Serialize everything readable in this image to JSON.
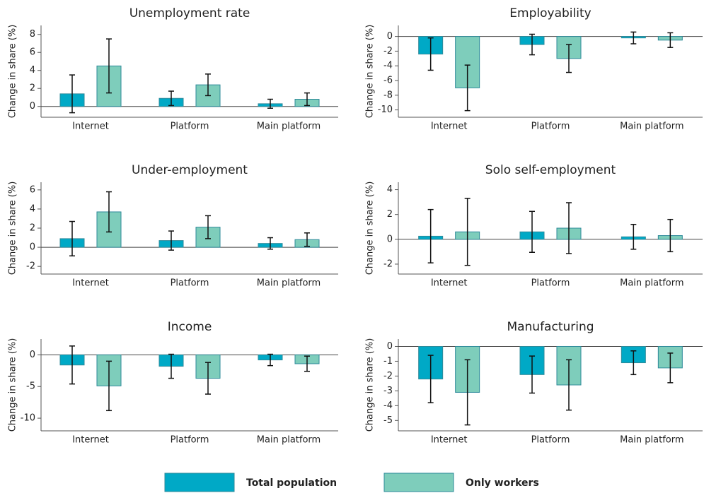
{
  "chart_data": [
    {
      "type": "bar",
      "title": "Unemployment rate",
      "ylabel": "Change in share (%)",
      "categories": [
        "Internet",
        "Platform",
        "Main platform"
      ],
      "series": [
        {
          "name": "Total population",
          "color": "#00a9c6",
          "values": [
            1.4,
            0.9,
            0.3
          ],
          "errors": [
            2.1,
            0.8,
            0.5
          ]
        },
        {
          "name": "Only workers",
          "color": "#7ecdbb",
          "values": [
            4.5,
            2.4,
            0.8
          ],
          "errors": [
            3.0,
            1.2,
            0.7
          ]
        }
      ],
      "ylim": [
        -1.2,
        9
      ],
      "yticks": [
        0,
        2,
        4,
        6,
        8
      ]
    },
    {
      "type": "bar",
      "title": "Employability",
      "ylabel": "Change in share (%)",
      "categories": [
        "Internet",
        "Platform",
        "Main platform"
      ],
      "series": [
        {
          "color": "#00a9c6",
          "values": [
            -2.4,
            -1.1,
            -0.2
          ],
          "errors": [
            2.2,
            1.4,
            0.8
          ]
        },
        {
          "color": "#7ecdbb",
          "values": [
            -7,
            -3,
            -0.5
          ],
          "errors": [
            3.1,
            1.9,
            1.0
          ]
        }
      ],
      "ylim": [
        -11,
        1.5
      ],
      "yticks": [
        0,
        -2,
        -4,
        -6,
        -8,
        -10
      ]
    },
    {
      "type": "bar",
      "title": "Under-employment",
      "ylabel": "Change in share (%)",
      "categories": [
        "Internet",
        "Platform",
        "Main platform"
      ],
      "series": [
        {
          "color": "#00a9c6",
          "values": [
            0.9,
            0.7,
            0.4
          ],
          "errors": [
            1.8,
            1.0,
            0.6
          ]
        },
        {
          "color": "#7ecdbb",
          "values": [
            3.7,
            2.1,
            0.8
          ],
          "errors": [
            2.1,
            1.2,
            0.7
          ]
        }
      ],
      "ylim": [
        -2.8,
        6.8
      ],
      "yticks": [
        -2,
        0,
        2,
        4,
        6
      ]
    },
    {
      "type": "bar",
      "title": "Solo self-employment",
      "ylabel": "Change in share (%)",
      "categories": [
        "Internet",
        "Platform",
        "Main platform"
      ],
      "series": [
        {
          "color": "#00a9c6",
          "values": [
            0.25,
            0.6,
            0.2
          ],
          "errors": [
            2.15,
            1.65,
            1.0
          ]
        },
        {
          "color": "#7ecdbb",
          "values": [
            0.6,
            0.9,
            0.3
          ],
          "errors": [
            2.7,
            2.05,
            1.3
          ]
        }
      ],
      "ylim": [
        -2.8,
        4.6
      ],
      "yticks": [
        -2,
        0,
        2,
        4
      ]
    },
    {
      "type": "bar",
      "title": "Income",
      "ylabel": "Change in share (%)",
      "categories": [
        "Internet",
        "Platform",
        "Main platform"
      ],
      "series": [
        {
          "color": "#00a9c6",
          "values": [
            -1.6,
            -1.8,
            -0.8
          ],
          "errors": [
            3.0,
            1.9,
            0.9
          ]
        },
        {
          "color": "#7ecdbb",
          "values": [
            -4.9,
            -3.7,
            -1.4
          ],
          "errors": [
            3.9,
            2.5,
            1.2
          ]
        }
      ],
      "ylim": [
        -12,
        2.5
      ],
      "yticks": [
        -10,
        -5,
        0
      ]
    },
    {
      "type": "bar",
      "title": "Manufacturing",
      "ylabel": "Change in share (%)",
      "categories": [
        "Internet",
        "Platform",
        "Main platform"
      ],
      "series": [
        {
          "color": "#00a9c6",
          "values": [
            -2.2,
            -1.9,
            -1.1
          ],
          "errors": [
            1.6,
            1.25,
            0.8
          ]
        },
        {
          "color": "#7ecdbb",
          "values": [
            -3.1,
            -2.6,
            -1.45
          ],
          "errors": [
            2.2,
            1.7,
            1.0
          ]
        }
      ],
      "ylim": [
        -5.7,
        0.5
      ],
      "yticks": [
        0,
        -1,
        -2,
        -3,
        -4,
        -5
      ]
    }
  ]
}
